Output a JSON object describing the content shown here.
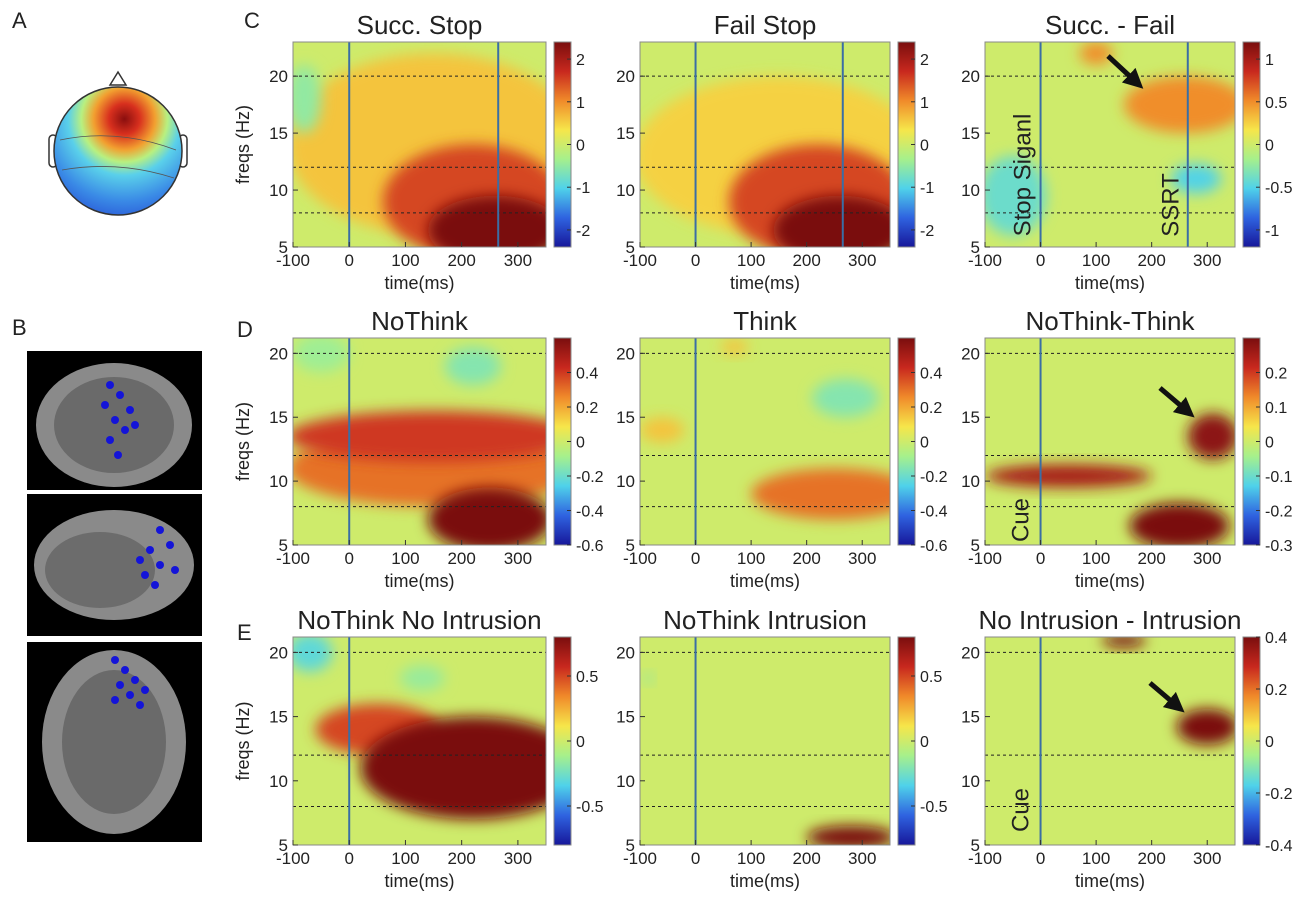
{
  "panel_labels": [
    "A",
    "B",
    "C",
    "D",
    "E"
  ],
  "colormap": [
    "#17179a",
    "#2f63e0",
    "#4fd2ea",
    "#a6f08c",
    "#f6e64a",
    "#f08a2a",
    "#c8281e",
    "#7a0e0e"
  ],
  "chart_data": [
    {
      "type": "heatmap",
      "title": "Succ. Stop",
      "xlabel": "time(ms)",
      "ylabel": "freqs (Hz)",
      "xlim": [
        -100,
        350
      ],
      "ylim": [
        5,
        23
      ],
      "xticks": [
        -100,
        0,
        100,
        200,
        300
      ],
      "yticks": [
        5,
        10,
        15,
        20
      ],
      "vlines": [
        0,
        265
      ],
      "hlines": [
        8,
        12,
        20
      ],
      "clim": [
        -2.4,
        2.4
      ],
      "cticks": [
        -2,
        -1,
        0,
        1,
        2
      ],
      "blobs": [
        {
          "t": 150,
          "f": 14,
          "rt": 260,
          "rf": 8,
          "v": 0.6
        },
        {
          "t": 220,
          "f": 9,
          "rt": 160,
          "rf": 5,
          "v": 1.5
        },
        {
          "t": 260,
          "f": 6.5,
          "rt": 120,
          "rf": 3,
          "v": 2.4
        },
        {
          "t": -80,
          "f": 18,
          "rt": 30,
          "rf": 3,
          "v": -0.5
        }
      ],
      "annotations": []
    },
    {
      "type": "heatmap",
      "title": "Fail Stop",
      "xlabel": "time(ms)",
      "xlim": [
        -100,
        350
      ],
      "ylim": [
        5,
        23
      ],
      "xticks": [
        -100,
        0,
        100,
        200,
        300
      ],
      "yticks": [
        5,
        10,
        15,
        20
      ],
      "vlines": [
        0,
        265
      ],
      "hlines": [
        8,
        12,
        20
      ],
      "clim": [
        -2.4,
        2.4
      ],
      "cticks": [
        -2,
        -1,
        0,
        1,
        2
      ],
      "blobs": [
        {
          "t": 150,
          "f": 13,
          "rt": 260,
          "rf": 7,
          "v": 0.5
        },
        {
          "t": 220,
          "f": 9,
          "rt": 160,
          "rf": 5,
          "v": 1.5
        },
        {
          "t": 260,
          "f": 6.5,
          "rt": 120,
          "rf": 3,
          "v": 2.4
        }
      ],
      "annotations": []
    },
    {
      "type": "heatmap",
      "title": "Succ. - Fail",
      "xlabel": "time(ms)",
      "xlim": [
        -100,
        350
      ],
      "ylim": [
        5,
        23
      ],
      "xticks": [
        -100,
        0,
        100,
        200,
        300
      ],
      "yticks": [
        5,
        10,
        15,
        20
      ],
      "vlines": [
        0,
        265
      ],
      "hlines": [
        8,
        12,
        20
      ],
      "clim": [
        -1.2,
        1.2
      ],
      "cticks": [
        -1,
        -0.5,
        0,
        0.5,
        1
      ],
      "blobs": [
        {
          "t": 260,
          "f": 17.5,
          "rt": 110,
          "rf": 2.5,
          "v": 0.5
        },
        {
          "t": 100,
          "f": 22,
          "rt": 30,
          "rf": 1,
          "v": 0.5
        },
        {
          "t": -50,
          "f": 9.5,
          "rt": 60,
          "rf": 3.5,
          "v": -0.4
        },
        {
          "t": 280,
          "f": 11,
          "rt": 45,
          "rf": 1.3,
          "v": -0.5
        }
      ],
      "annotations": [
        "Stop Siganl",
        "SSRT"
      ]
    },
    {
      "type": "heatmap",
      "title": "NoThink",
      "xlabel": "time(ms)",
      "ylabel": "freqs (Hz)",
      "xlim": [
        -100,
        350
      ],
      "ylim": [
        5,
        21.2
      ],
      "xticks": [
        -100,
        0,
        100,
        200,
        300
      ],
      "yticks": [
        5,
        10,
        15,
        20
      ],
      "vlines": [
        0
      ],
      "hlines": [
        8,
        12,
        20
      ],
      "clim": [
        -0.6,
        0.6
      ],
      "cticks": [
        -0.6,
        -0.4,
        -0.2,
        0,
        0.2,
        0.4
      ],
      "blobs": [
        {
          "t": 150,
          "f": 11,
          "rt": 260,
          "rf": 3,
          "v": 0.3
        },
        {
          "t": 150,
          "f": 13.5,
          "rt": 260,
          "rf": 2,
          "v": 0.4
        },
        {
          "t": 250,
          "f": 7,
          "rt": 110,
          "rf": 2.5,
          "v": 0.6
        },
        {
          "t": -50,
          "f": 20,
          "rt": 50,
          "rf": 1.5,
          "v": -0.1
        },
        {
          "t": 220,
          "f": 19,
          "rt": 50,
          "rf": 1.5,
          "v": -0.15
        }
      ],
      "annotations": []
    },
    {
      "type": "heatmap",
      "title": "Think",
      "xlabel": "time(ms)",
      "xlim": [
        -100,
        350
      ],
      "ylim": [
        5,
        21.2
      ],
      "xticks": [
        -100,
        0,
        100,
        200,
        300
      ],
      "yticks": [
        5,
        10,
        15,
        20
      ],
      "vlines": [
        0
      ],
      "hlines": [
        8,
        12,
        20
      ],
      "clim": [
        -0.6,
        0.6
      ],
      "cticks": [
        -0.6,
        -0.4,
        -0.2,
        0,
        0.2,
        0.4
      ],
      "blobs": [
        {
          "t": 250,
          "f": 9,
          "rt": 150,
          "rf": 2,
          "v": 0.3
        },
        {
          "t": -60,
          "f": 14,
          "rt": 40,
          "rf": 1,
          "v": 0.15
        },
        {
          "t": 70,
          "f": 20.5,
          "rt": 25,
          "rf": 0.6,
          "v": 0.15
        },
        {
          "t": 270,
          "f": 16.5,
          "rt": 60,
          "rf": 1.5,
          "v": -0.15
        }
      ],
      "annotations": []
    },
    {
      "type": "heatmap",
      "title": "NoThink-Think",
      "xlabel": "time(ms)",
      "xlim": [
        -100,
        350
      ],
      "ylim": [
        5,
        21.2
      ],
      "xticks": [
        -100,
        0,
        100,
        200,
        300
      ],
      "yticks": [
        5,
        10,
        15,
        20
      ],
      "vlines": [
        0
      ],
      "hlines": [
        8,
        12,
        20
      ],
      "clim": [
        -0.3,
        0.3
      ],
      "cticks": [
        -0.3,
        -0.2,
        -0.1,
        0,
        0.1,
        0.2
      ],
      "blobs": [
        {
          "t": 250,
          "f": 6.5,
          "rt": 90,
          "rf": 1.8,
          "v": 0.3
        },
        {
          "t": 50,
          "f": 10.4,
          "rt": 150,
          "rf": 0.9,
          "v": 0.25
        },
        {
          "t": 310,
          "f": 13.5,
          "rt": 45,
          "rf": 1.8,
          "v": 0.28
        }
      ],
      "annotations": [
        "Cue"
      ]
    },
    {
      "type": "heatmap",
      "title": "NoThink No Intrusion",
      "xlabel": "time(ms)",
      "ylabel": "freqs (Hz)",
      "xlim": [
        -100,
        350
      ],
      "ylim": [
        5,
        21.2
      ],
      "xticks": [
        -100,
        0,
        100,
        200,
        300
      ],
      "yticks": [
        5,
        10,
        15,
        20
      ],
      "vlines": [
        0
      ],
      "hlines": [
        8,
        12,
        20
      ],
      "clim": [
        -0.8,
        0.8
      ],
      "cticks": [
        -0.5,
        0,
        0.5
      ],
      "blobs": [
        {
          "t": 50,
          "f": 14,
          "rt": 110,
          "rf": 2,
          "v": 0.5
        },
        {
          "t": 220,
          "f": 11,
          "rt": 200,
          "rf": 4,
          "v": 0.8
        },
        {
          "t": -70,
          "f": 20,
          "rt": 40,
          "rf": 1.5,
          "v": -0.3
        },
        {
          "t": 130,
          "f": 18,
          "rt": 40,
          "rf": 1,
          "v": -0.15
        }
      ],
      "annotations": []
    },
    {
      "type": "heatmap",
      "title": "NoThink Intrusion",
      "xlabel": "time(ms)",
      "xlim": [
        -100,
        350
      ],
      "ylim": [
        5,
        21.2
      ],
      "xticks": [
        -100,
        0,
        100,
        200,
        300
      ],
      "yticks": [
        5,
        10,
        15,
        20
      ],
      "vlines": [
        0
      ],
      "hlines": [
        8,
        12,
        20
      ],
      "clim": [
        -0.8,
        0.8
      ],
      "cticks": [
        -0.5,
        0,
        0.5
      ],
      "blobs": [
        {
          "t": 280,
          "f": 5.6,
          "rt": 80,
          "rf": 0.9,
          "v": 0.8
        },
        {
          "t": -85,
          "f": 18,
          "rt": 8,
          "rf": 0.4,
          "v": -0.2
        }
      ],
      "annotations": []
    },
    {
      "type": "heatmap",
      "title": "No Intrusion - Intrusion",
      "xlabel": "time(ms)",
      "xlim": [
        -100,
        350
      ],
      "ylim": [
        5,
        21.2
      ],
      "xticks": [
        -100,
        0,
        100,
        200,
        300
      ],
      "yticks": [
        5,
        10,
        15,
        20
      ],
      "vlines": [
        0
      ],
      "hlines": [
        8,
        12,
        20
      ],
      "clim": [
        -0.4,
        0.4
      ],
      "cticks": [
        -0.4,
        -0.2,
        0,
        0.2,
        0.4
      ],
      "blobs": [
        {
          "t": 150,
          "f": 20.9,
          "rt": 40,
          "rf": 0.5,
          "v": 0.4
        },
        {
          "t": 300,
          "f": 14.2,
          "rt": 55,
          "rf": 1.4,
          "v": 0.4
        }
      ],
      "annotations": [
        "Cue"
      ]
    }
  ]
}
